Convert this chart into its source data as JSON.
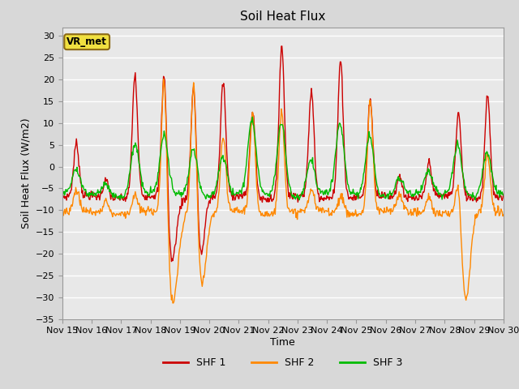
{
  "title": "Soil Heat Flux",
  "xlabel": "Time",
  "ylabel": "Soil Heat Flux (W/m2)",
  "ylim": [
    -35,
    32
  ],
  "yticks": [
    -35,
    -30,
    -25,
    -20,
    -15,
    -10,
    -5,
    0,
    5,
    10,
    15,
    20,
    25,
    30
  ],
  "x_labels": [
    "Nov 15",
    "Nov 16",
    "Nov 17",
    "Nov 18",
    "Nov 19",
    "Nov 20",
    "Nov 21",
    "Nov 22",
    "Nov 23",
    "Nov 24",
    "Nov 25",
    "Nov 26",
    "Nov 27",
    "Nov 28",
    "Nov 29",
    "Nov 30"
  ],
  "colors": {
    "SHF 1": "#cc0000",
    "SHF 2": "#ff8800",
    "SHF 3": "#00bb00"
  },
  "legend_label": "VR_met",
  "bg_color": "#d8d8d8",
  "plot_bg": "#e8e8e8",
  "linewidth": 1.0,
  "figsize": [
    6.4,
    4.8
  ],
  "dpi": 100
}
